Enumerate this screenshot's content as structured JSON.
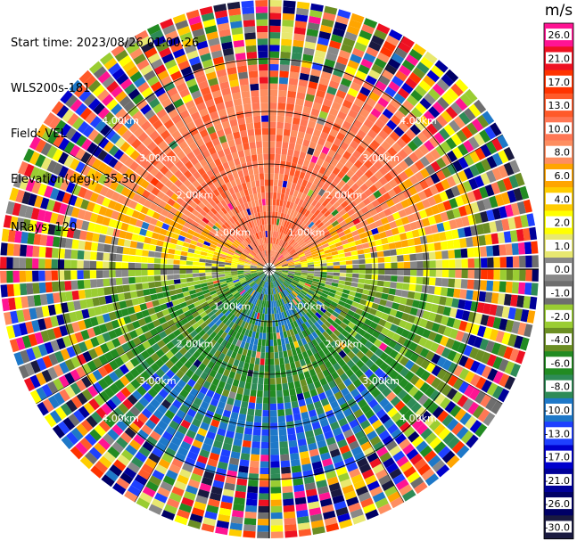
{
  "header": {
    "start_time": "Start time: 2023/08/26 01:00:26",
    "instrument": "WLS200s-181",
    "field": "Field: VEL",
    "elevation": "Elevation(deg): 35.30",
    "nrays": "NRays: 120"
  },
  "chart_data": {
    "type": "heatmap",
    "projection": "polar PPI",
    "field": "VEL",
    "units": "m/s",
    "n_rays": 120,
    "elevation_deg": 35.3,
    "range_ring_labels": [
      "1.00km",
      "2.00km",
      "3.00km",
      "4.00km"
    ],
    "range_rings_km": [
      1,
      2,
      3,
      4
    ],
    "colorbar": {
      "label": "m/s",
      "ticks": [
        "26.0",
        "21.0",
        "17.0",
        "13.0",
        "10.0",
        "8.0",
        "6.0",
        "4.0",
        "2.0",
        "1.0",
        "0.0",
        "-1.0",
        "-2.0",
        "-4.0",
        "-6.0",
        "-8.0",
        "-10.0",
        "-13.0",
        "-17.0",
        "-21.0",
        "-26.0",
        "-30.0"
      ],
      "colors": [
        "#ff1493",
        "#ee1122",
        "#ff3300",
        "#ff5a2a",
        "#ff7755",
        "#fe8e60",
        "#ffa500",
        "#ffcc00",
        "#ffff00",
        "#e8e870",
        "#888888",
        "#6e6e6e",
        "#9acd32",
        "#6b8e23",
        "#228b22",
        "#2e8b57",
        "#1e78c8",
        "#1e40ff",
        "#0000cd",
        "#000099",
        "#000066",
        "#1a1a40"
      ]
    },
    "pattern_summary": [
      {
        "sector": "north (upper half, near range)",
        "velocity": "positive",
        "dominant": "orange/salmon 6.0-10.0"
      },
      {
        "sector": "east and west flanks",
        "velocity": "positive",
        "dominant": "yellow 2.0-4.0"
      },
      {
        "sector": "around horizontal axis",
        "velocity": "near zero",
        "dominant": "gray 0.0"
      },
      {
        "sector": "south (lower half, near range)",
        "velocity": "negative",
        "dominant": "green -2.0 to -8.0"
      },
      {
        "sector": "far south",
        "velocity": "negative",
        "dominant": "blue -10.0 to -13.0"
      },
      {
        "sector": "outer range",
        "velocity": "noise",
        "dominant": "all colors"
      }
    ]
  }
}
